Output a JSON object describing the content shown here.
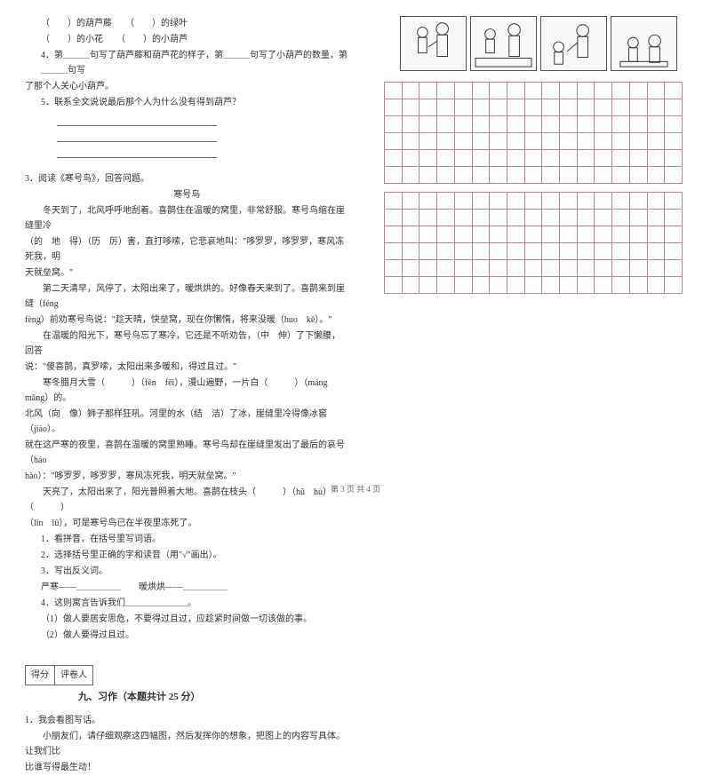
{
  "left": {
    "l1": "（　　）的葫芦藤　　（　　）的绿叶",
    "l2": "（　　）的小花　　（　　）的小葫芦",
    "l3": "4．第＿＿＿句写了葫芦藤和葫芦花的样子，第＿＿＿句写了小葫芦的数量，第＿＿＿句写",
    "l4": "了那个人关心小葫芦。",
    "l5": "5．联系全文说说最后那个人为什么没有得到葫芦？",
    "q3title": "3．阅读《寒号鸟》，回答问题。",
    "poem_title": "寒号鸟",
    "p1": "　　冬天到了，北风呼呼地刮着。喜鹊住在温暖的窝里，非常舒服。寒号鸟缩在崖缝里冷",
    "p2": "（的　地　得）（历　厉）害，直打哆嗦，它悲哀地叫：\"哆罗罗，哆罗罗，寒风冻死我，明",
    "p3": "天就垒窝。\"",
    "p4": "　　第二天清早，风停了，太阳出来了，暖烘烘的。好像春天来到了。喜鹊来到崖缝（féng",
    "p5": "fèng）前劝寒号鸟说：\"趁天晴，快垒窝，现在你懒惰，将来没暖（huo　kē）。\"",
    "p6": "　　在温暖的阳光下，寒号鸟忘了寒冷，它还是不听劝告，（中　伸）了下懒腰，回答",
    "p7": "说：\"傻喜鹊，真罗嗦，太阳出来多暖和，得过且过。\"",
    "p8": "　　寒冬腊月大雪（　　　）（fēn　fēi），漫山遍野，一片白（　　　）（máng　mǎng）的。",
    "p9": "北风（向　像）狮子那样狂吼。河里的水（结　洁）了冰，崖缝里冷得像冰窖（jiào）。",
    "p10": "就在这严寒的夜里，喜鹊在温暖的窝里熟睡。寒号鸟却在崖缝里发出了最后的哀号（háo",
    "p11": "hào）：\"哆罗罗，哆罗罗，寒风冻死我，明天就垒窝。\"",
    "p12": "　　天亮了，太阳出来了，阳光普照着大地。喜鹊在枝头（　　　）（hū　hù）（　　　）",
    "p13": "（lín　lū），可是寒号鸟已在半夜里冻死了。",
    "sub1": "1．看拼音，在括号里写词语。",
    "sub2": "2．选择括号里正确的字和读音（用\"√\"画出）。",
    "sub3": "3．写出反义词。",
    "sub3a": "严寒——＿＿＿＿＿　　暖烘烘——＿＿＿＿＿",
    "sub4": "4．这则寓言告诉我们＿＿＿＿＿＿＿。",
    "sub4a": "（1）做人要居安思危，不要得过且过，应趁紧时间做一切该做的事。",
    "sub4b": "（2）做人要得过且过。",
    "score1": "得分",
    "score2": "评卷人",
    "section9": "九、习作（本题共计 25 分）",
    "w1": "1．我会看图写话。",
    "w2": "　　小朋友们，请仔细观察这四幅图，然后发挥你的想象，把图上的内容写具体。让我们比",
    "w3": "比谁写得最生动！"
  },
  "grid": {
    "cols": 17,
    "block1_rows": 6,
    "block2_rows": 6,
    "cell_border": "#b88888"
  },
  "footer": "第 3 页 共 4 页"
}
